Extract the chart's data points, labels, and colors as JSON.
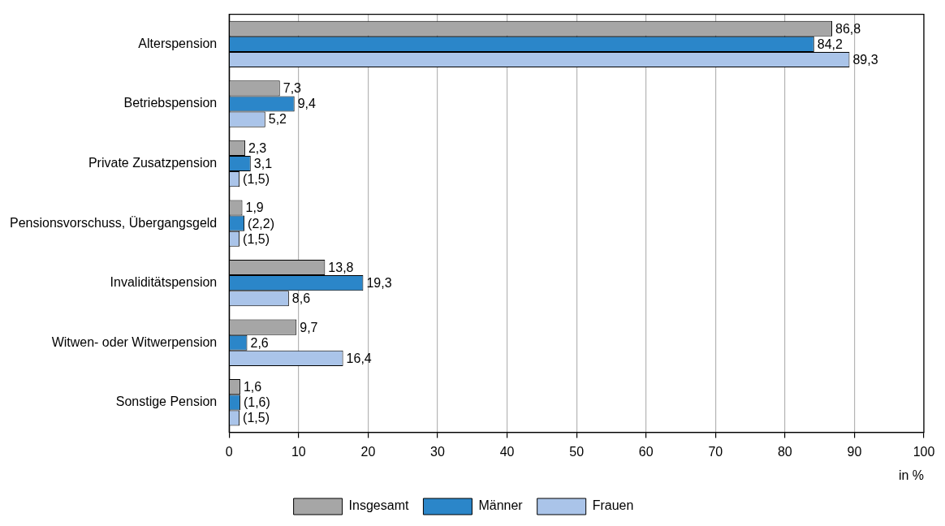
{
  "chart_data": {
    "type": "bar",
    "orientation": "horizontal",
    "xlabel": "in %",
    "categories": [
      "Alterspension",
      "Betriebspension",
      "Private Zusatzpension",
      "Pensionsvorschuss, Übergangsgeld",
      "Invaliditätspension",
      "Witwen- oder Witwerpension",
      "Sonstige Pension"
    ],
    "series": [
      {
        "name": "Insgesamt",
        "color": "#a6a6a6",
        "values": [
          86.8,
          7.3,
          2.3,
          1.9,
          13.8,
          9.7,
          1.6
        ],
        "value_labels": [
          "86,8",
          "7,3",
          "2,3",
          "1,9",
          "13,8",
          "9,7",
          "1,6"
        ]
      },
      {
        "name": "Männer",
        "color": "#2b86c9",
        "values": [
          84.2,
          9.4,
          3.1,
          2.2,
          19.3,
          2.6,
          1.6
        ],
        "value_labels": [
          "84,2",
          "9,4",
          "3,1",
          "(2,2)",
          "19,3",
          "2,6",
          "(1,6)"
        ]
      },
      {
        "name": "Frauen",
        "color": "#aac4e9",
        "values": [
          89.3,
          5.2,
          1.5,
          1.5,
          8.6,
          16.4,
          1.5
        ],
        "value_labels": [
          "89,3",
          "5,2",
          "(1,5)",
          "(1,5)",
          "8,6",
          "16,4",
          "(1,5)"
        ]
      }
    ],
    "xlim": [
      0,
      100
    ],
    "xticks": [
      0,
      10,
      20,
      30,
      40,
      50,
      60,
      70,
      80,
      90,
      100
    ],
    "grid": "x",
    "legend": "bottom"
  }
}
